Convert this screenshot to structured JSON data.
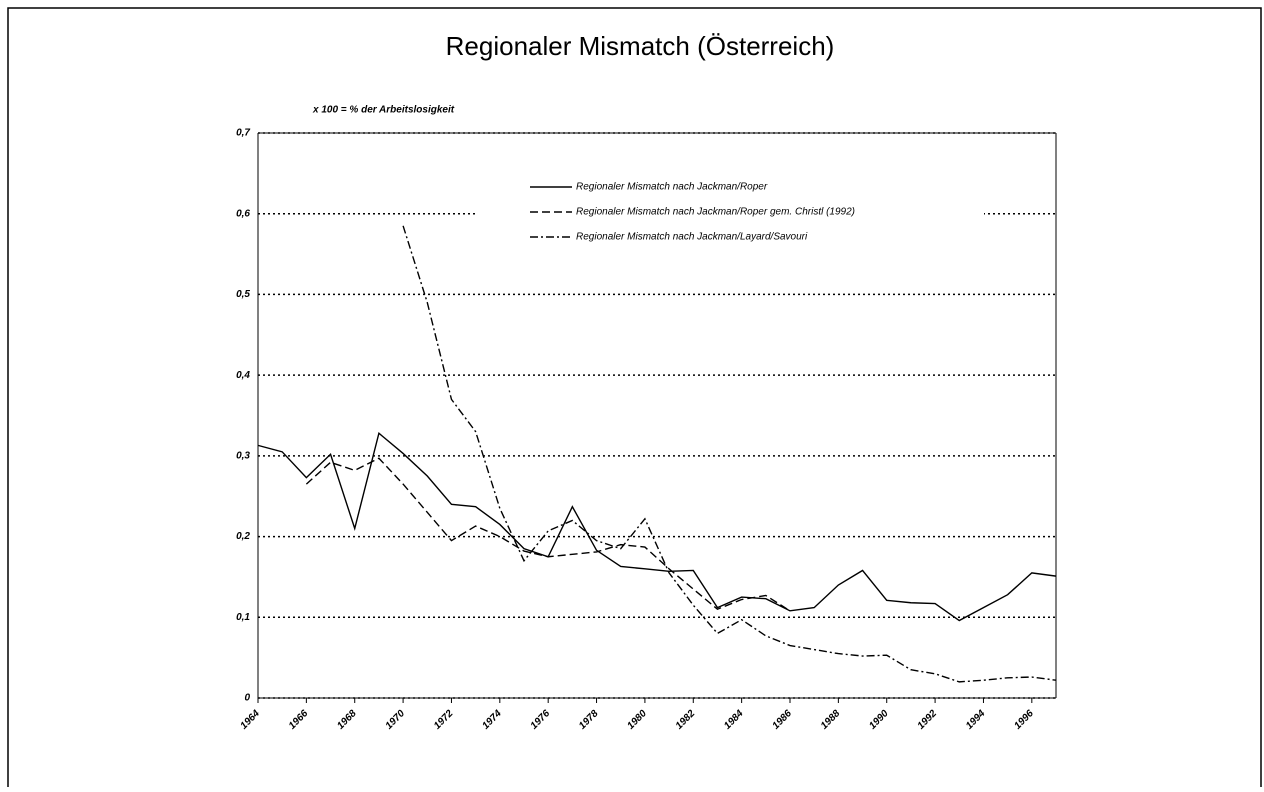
{
  "chart_data": {
    "type": "line",
    "title": "Regionaler Mismatch (Österreich)",
    "subtitle": "x 100 = % der Arbeitslosigkeit",
    "x": [
      1964,
      1965,
      1966,
      1967,
      1968,
      1969,
      1970,
      1971,
      1972,
      1973,
      1974,
      1975,
      1976,
      1977,
      1978,
      1979,
      1980,
      1981,
      1982,
      1983,
      1984,
      1985,
      1986,
      1987,
      1988,
      1989,
      1990,
      1991,
      1992,
      1993,
      1994,
      1995,
      1996,
      1997
    ],
    "xlim": [
      1964,
      1997
    ],
    "xticks": [
      1964,
      1966,
      1968,
      1970,
      1972,
      1974,
      1976,
      1978,
      1980,
      1982,
      1984,
      1986,
      1988,
      1990,
      1992,
      1994,
      1996
    ],
    "ylim": [
      0,
      0.7
    ],
    "yticks": [
      0,
      {
        "value": 0.1,
        "label": "0,1"
      },
      {
        "value": 0.2,
        "label": "0,2"
      },
      {
        "value": 0.3,
        "label": "0,3"
      },
      {
        "value": 0.4,
        "label": "0,4"
      },
      {
        "value": 0.5,
        "label": "0,5"
      },
      {
        "value": 0.6,
        "label": "0,6"
      },
      {
        "value": 0.7,
        "label": "0,7"
      }
    ],
    "grid": true,
    "series": [
      {
        "name": "Regionaler Mismatch nach Jackman/Roper",
        "color": "#000000",
        "dash": "solid",
        "values": [
          0.313,
          0.305,
          0.273,
          0.302,
          0.21,
          0.328,
          0.303,
          0.275,
          0.24,
          0.237,
          0.215,
          0.185,
          0.175,
          0.237,
          0.183,
          0.163,
          0.16,
          0.157,
          0.158,
          0.112,
          0.125,
          0.123,
          0.108,
          0.112,
          0.14,
          0.158,
          0.121,
          0.118,
          0.117,
          0.096,
          0.112,
          0.128,
          0.155,
          0.151
        ]
      },
      {
        "name": "Regionaler Mismatch nach Jackman/Roper gem. Christl (1992)",
        "color": "#000000",
        "dash": "dashed",
        "values": [
          null,
          null,
          0.265,
          0.292,
          0.282,
          0.297,
          0.265,
          0.23,
          0.195,
          0.213,
          0.2,
          0.182,
          0.175,
          0.178,
          0.181,
          0.19,
          0.187,
          0.16,
          0.135,
          0.11,
          0.122,
          0.127,
          0.108,
          null,
          null,
          null,
          null,
          null,
          null,
          null,
          null,
          null,
          null,
          null
        ]
      },
      {
        "name": "Regionaler Mismatch nach Jackman/Layard/Savouri",
        "color": "#000000",
        "dash": "dashdot",
        "values": [
          null,
          null,
          null,
          null,
          null,
          null,
          0.585,
          0.49,
          0.37,
          0.33,
          0.235,
          0.17,
          0.207,
          0.22,
          0.195,
          0.185,
          0.222,
          0.155,
          0.115,
          0.08,
          0.097,
          0.077,
          0.065,
          0.06,
          0.055,
          0.052,
          0.053,
          0.035,
          0.03,
          0.02,
          0.022,
          0.025,
          0.026,
          0.022
        ]
      }
    ]
  }
}
